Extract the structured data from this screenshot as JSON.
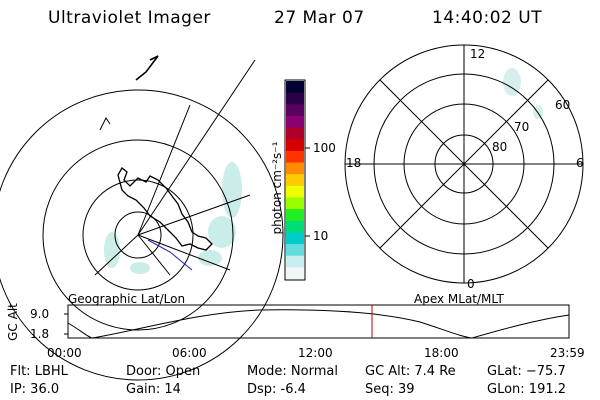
{
  "header": {
    "instrument": "Ultraviolet Imager",
    "date": "27 Mar 07",
    "time": "14:40:02 UT"
  },
  "colorbar": {
    "unit_label": "photon cm⁻²s⁻¹",
    "ticks": [
      "100",
      "10"
    ],
    "colors": [
      "#000033",
      "#2a0044",
      "#5a0060",
      "#8a0070",
      "#b0002a",
      "#d40000",
      "#ff3300",
      "#ff8c00",
      "#ffcc00",
      "#eeff00",
      "#9cff00",
      "#22ee22",
      "#00dd77",
      "#00cccc",
      "#66dddd",
      "#c8eeee",
      "#f2f8f8"
    ]
  },
  "polar_grid": {
    "lat_labels": [
      "60",
      "70",
      "80"
    ],
    "mlt_labels": [
      "12",
      "18",
      "6",
      "0"
    ]
  },
  "timeline": {
    "left_caption": "Geographic Lat/Lon",
    "right_caption": "Apex MLat/MLT",
    "y_label": "GC Alt",
    "y_ticks": [
      "9.0",
      "1.8"
    ],
    "x_ticks": [
      "00:00",
      "06:00",
      "12:00",
      "18:00",
      "23:59"
    ],
    "marker_color": "#cc0000"
  },
  "status": {
    "flt": "Flt: LBHL",
    "ip": "IP: 36.0",
    "door": "Door: Open",
    "gain": "Gain: 14",
    "mode": "Mode: Normal",
    "dsp": "Dsp:    -6.4",
    "gc_alt": "GC Alt: 7.4 Re",
    "seq": "Seq: 39",
    "glat": "GLat: −75.7",
    "glon": "GLon: 191.2"
  }
}
